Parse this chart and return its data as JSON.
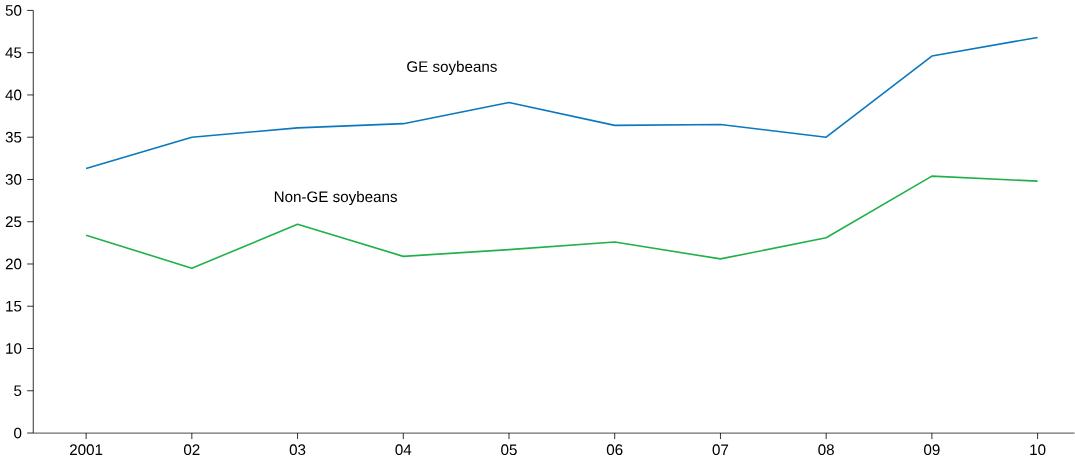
{
  "chart_data": {
    "type": "line",
    "categories": [
      "2001",
      "02",
      "03",
      "04",
      "05",
      "06",
      "07",
      "08",
      "09",
      "10"
    ],
    "series": [
      {
        "name": "GE soybeans",
        "color": "#0a78be",
        "values": [
          31.3,
          35.0,
          36.1,
          36.6,
          39.1,
          36.4,
          36.5,
          35.0,
          44.6,
          46.8
        ]
      },
      {
        "name": "Non-GE soybeans",
        "color": "#22b04b",
        "values": [
          23.4,
          19.5,
          24.7,
          20.9,
          21.7,
          22.6,
          20.6,
          23.1,
          30.4,
          29.8
        ]
      }
    ],
    "ylim": [
      0,
      50
    ],
    "yticks": [
      0,
      5,
      10,
      15,
      20,
      25,
      30,
      35,
      40,
      45,
      50
    ],
    "grid": false,
    "legend": false,
    "marker": "none",
    "line_style": "solid"
  }
}
